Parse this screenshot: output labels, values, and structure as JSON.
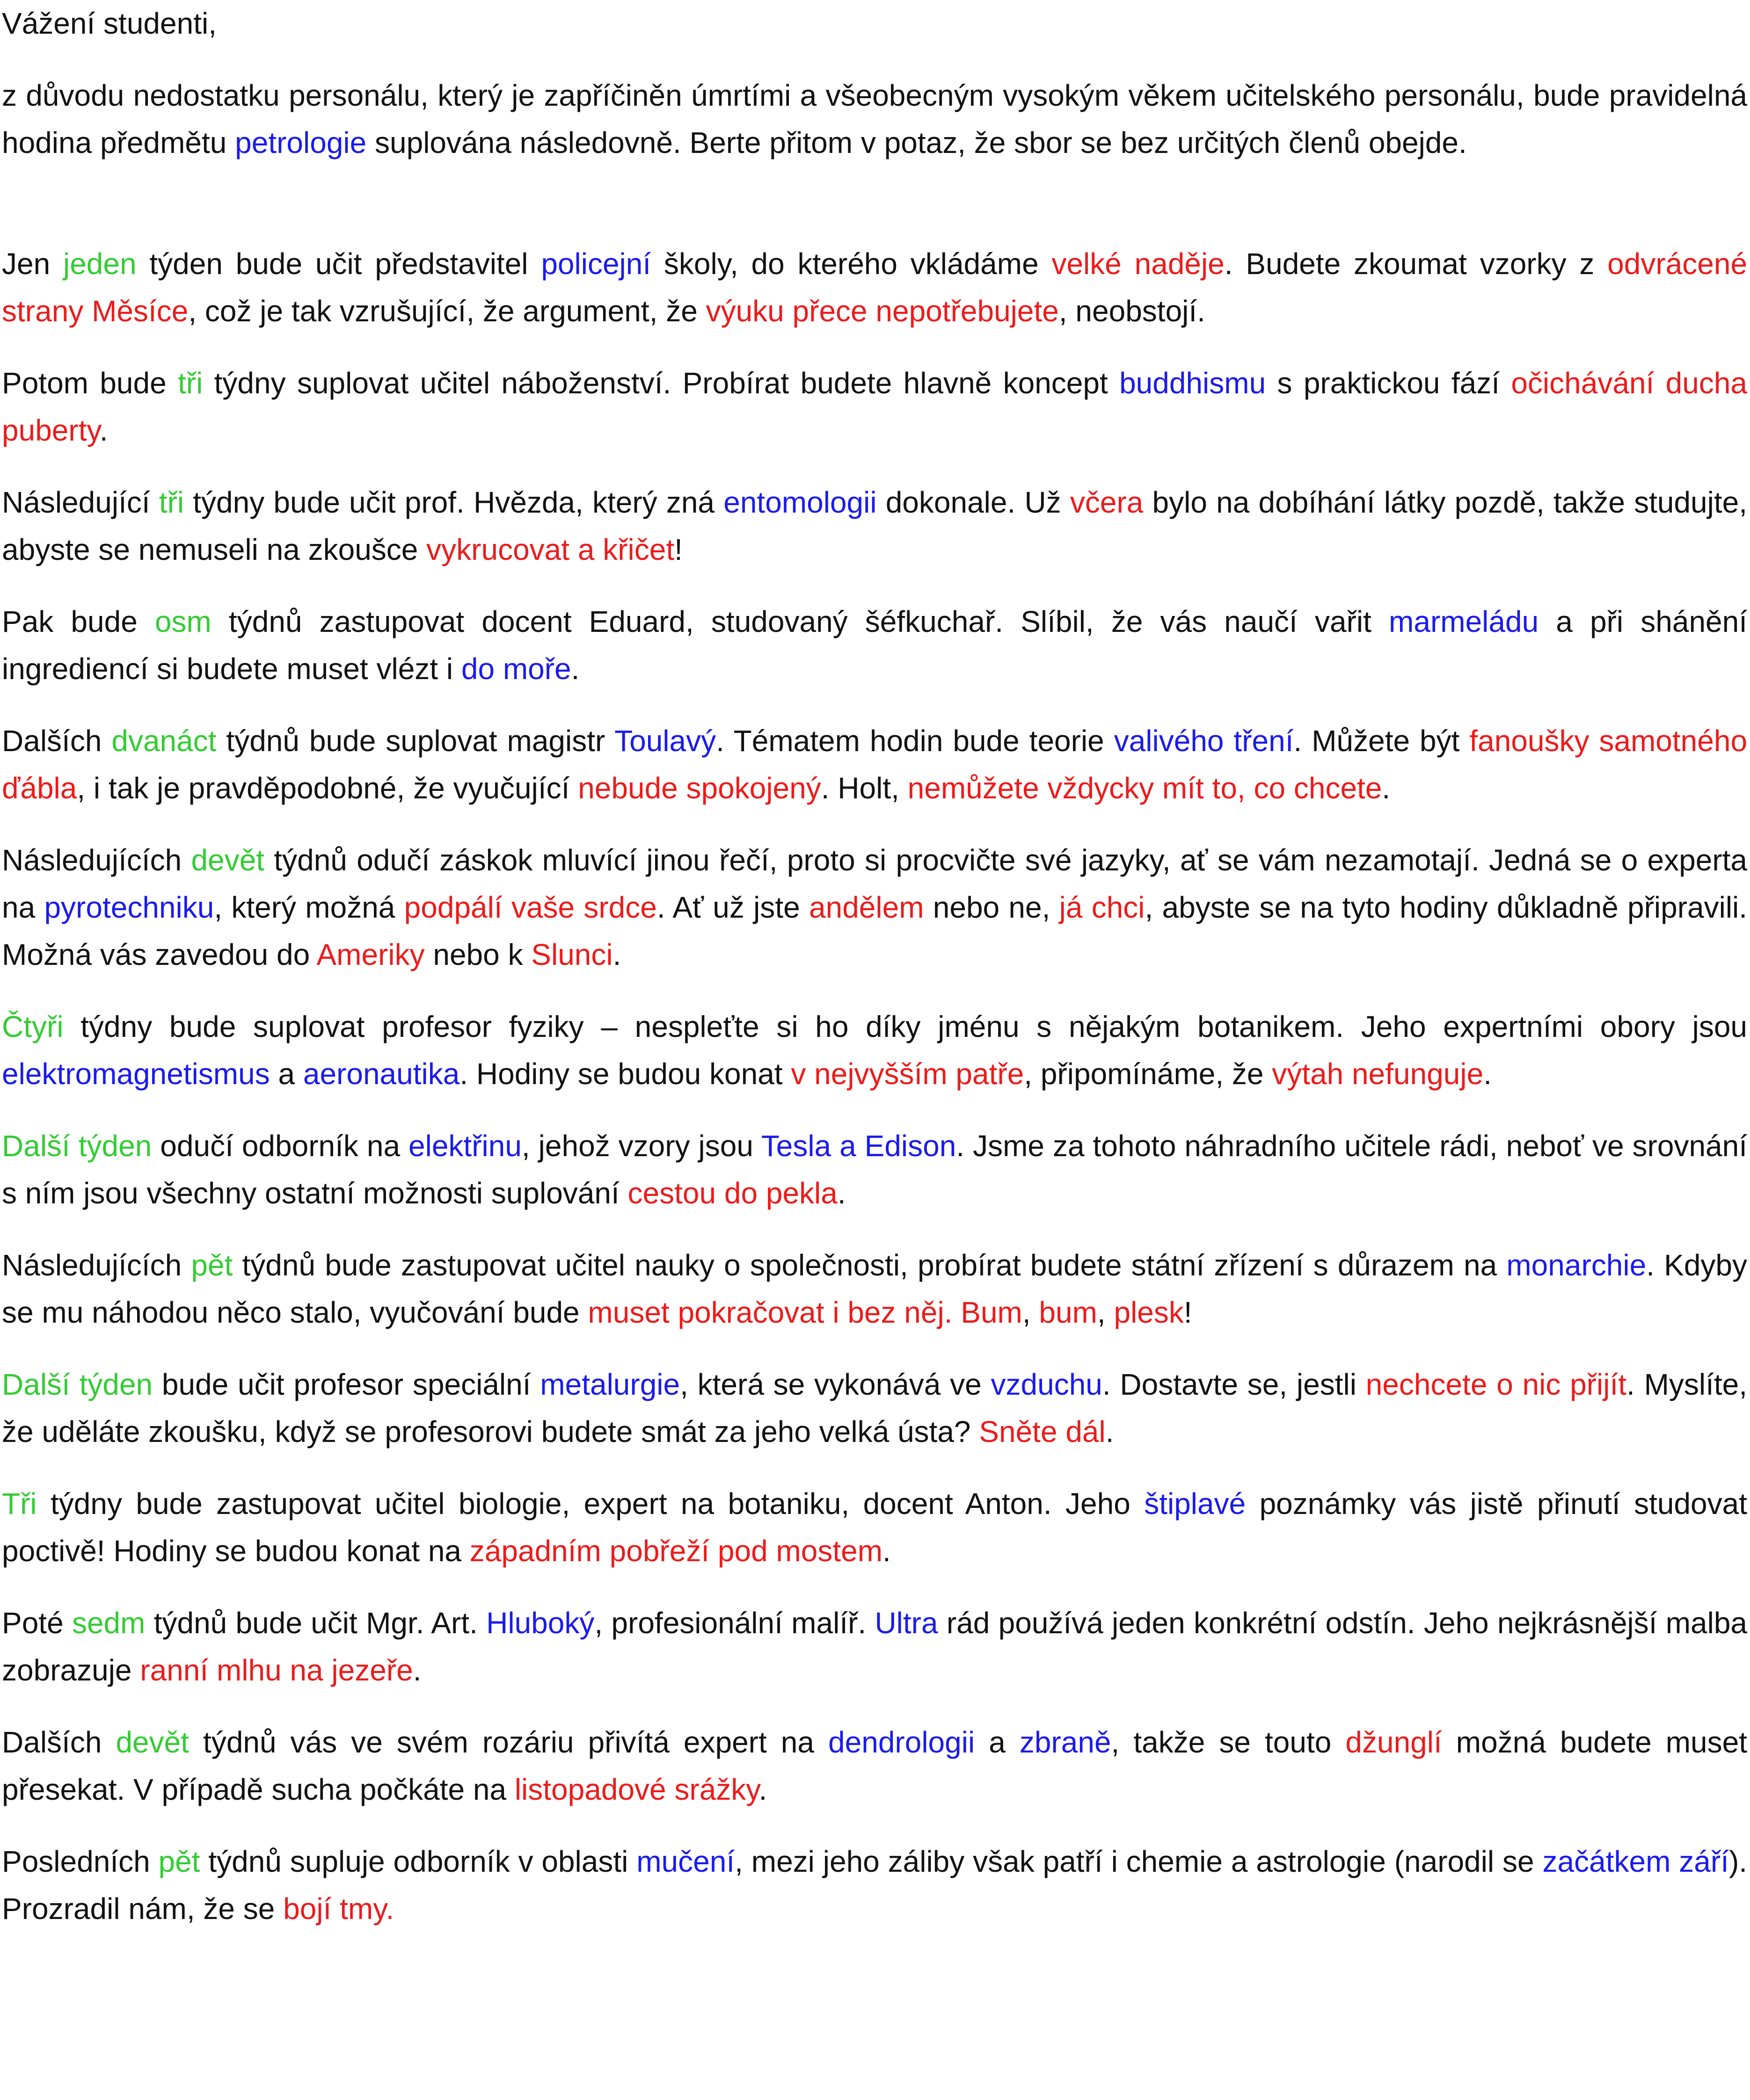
{
  "paragraphs": [
    {
      "segments": [
        {
          "text": "Vážení studenti,"
        }
      ]
    },
    {
      "segments": [
        {
          "text": "z důvodu nedostatku personálu, který je zapříčiněn úmrtími a všeobecným vysokým věkem učitelského personálu, bude pravidelná hodina předmětu "
        },
        {
          "text": "petrologie",
          "color": "#1a1aee"
        },
        {
          "text": " suplována následovně. Berte přitom v potaz, že sbor se bez určitých členů obejde."
        }
      ]
    },
    {
      "segments": [
        {
          "text": "Jen "
        },
        {
          "text": "jeden",
          "color": "#33cc33"
        },
        {
          "text": " týden bude učit představitel "
        },
        {
          "text": "policejní",
          "color": "#1a1aee"
        },
        {
          "text": " školy, do kterého vkládáme "
        },
        {
          "text": "velké naděje",
          "color": "#ee1a1a"
        },
        {
          "text": ". Budete zkoumat vzorky z "
        },
        {
          "text": "odvrácené strany Měsíce",
          "color": "#ee1a1a"
        },
        {
          "text": ", což je tak vzrušující, že argument, že "
        },
        {
          "text": "výuku přece nepotřebujete",
          "color": "#ee1a1a"
        },
        {
          "text": ", neobstojí."
        }
      ]
    },
    {
      "segments": [
        {
          "text": "Potom bude "
        },
        {
          "text": "tři",
          "color": "#33cc33"
        },
        {
          "text": " týdny suplovat učitel náboženství. Probírat budete hlavně koncept "
        },
        {
          "text": "buddhismu",
          "color": "#1a1aee"
        },
        {
          "text": " s praktickou fází "
        },
        {
          "text": "očichávání ducha puberty",
          "color": "#ee1a1a"
        },
        {
          "text": "."
        }
      ]
    },
    {
      "segments": [
        {
          "text": "Následující "
        },
        {
          "text": "tři",
          "color": "#33cc33"
        },
        {
          "text": " týdny bude učit prof. Hvězda, který zná "
        },
        {
          "text": "entomologii",
          "color": "#1a1aee"
        },
        {
          "text": " dokonale. Už "
        },
        {
          "text": "včera",
          "color": "#ee1a1a"
        },
        {
          "text": " bylo na dobíhání látky pozdě, takže studujte, abyste se nemuseli na zkoušce "
        },
        {
          "text": "vykrucovat a křičet",
          "color": "#ee1a1a"
        },
        {
          "text": "!"
        }
      ]
    },
    {
      "segments": [
        {
          "text": "Pak bude "
        },
        {
          "text": "osm",
          "color": "#33cc33"
        },
        {
          "text": " týdnů zastupovat docent Eduard, studovaný šéfkuchař. Slíbil, že vás naučí vařit "
        },
        {
          "text": "marmeládu",
          "color": "#1a1aee"
        },
        {
          "text": " a při shánění ingrediencí si budete muset vlézt i "
        },
        {
          "text": "do moře",
          "color": "#1a1aee"
        },
        {
          "text": "."
        }
      ]
    },
    {
      "segments": [
        {
          "text": "Dalších "
        },
        {
          "text": "dvanáct",
          "color": "#33cc33"
        },
        {
          "text": " týdnů bude suplovat magistr "
        },
        {
          "text": "Toulavý",
          "color": "#1a1aee"
        },
        {
          "text": ". Tématem hodin bude teorie "
        },
        {
          "text": "valivého tření",
          "color": "#1a1aee"
        },
        {
          "text": ". Můžete být "
        },
        {
          "text": "fanoušky samotného ďábla",
          "color": "#ee1a1a"
        },
        {
          "text": ", i tak je pravděpodobné, že vyučující "
        },
        {
          "text": "nebude spokojený",
          "color": "#ee1a1a"
        },
        {
          "text": ". Holt, "
        },
        {
          "text": "nemůžete vždycky mít to, co chcete",
          "color": "#ee1a1a"
        },
        {
          "text": "."
        }
      ]
    },
    {
      "segments": [
        {
          "text": "Následujících "
        },
        {
          "text": "devět",
          "color": "#33cc33"
        },
        {
          "text": " týdnů odučí záskok mluvící jinou řečí, proto si procvičte své jazyky, ať se vám nezamotají. Jedná se o experta na "
        },
        {
          "text": "pyrotechniku",
          "color": "#1a1aee"
        },
        {
          "text": ", který možná "
        },
        {
          "text": "podpálí vaše srdce",
          "color": "#ee1a1a"
        },
        {
          "text": ". Ať už jste "
        },
        {
          "text": "andělem",
          "color": "#ee1a1a"
        },
        {
          "text": " nebo ne, "
        },
        {
          "text": "já chci",
          "color": "#ee1a1a"
        },
        {
          "text": ", abyste se na tyto hodiny důkladně připravili. Možná vás zavedou do "
        },
        {
          "text": "Ameriky",
          "color": "#ee1a1a"
        },
        {
          "text": " nebo k "
        },
        {
          "text": "Slunci",
          "color": "#ee1a1a"
        },
        {
          "text": "."
        }
      ]
    },
    {
      "segments": [
        {
          "text": "Čtyři",
          "color": "#33cc33"
        },
        {
          "text": " týdny bude suplovat profesor fyziky – nespleťte si ho díky jménu s nějakým botanikem. Jeho expertními obory jsou "
        },
        {
          "text": "elektromagnetismus",
          "color": "#1a1aee"
        },
        {
          "text": " a "
        },
        {
          "text": "aeronautika",
          "color": "#1a1aee"
        },
        {
          "text": ". Hodiny se budou konat "
        },
        {
          "text": "v nejvyšším patře",
          "color": "#ee1a1a"
        },
        {
          "text": ", připomínáme, že "
        },
        {
          "text": "výtah nefunguje",
          "color": "#ee1a1a"
        },
        {
          "text": "."
        }
      ]
    },
    {
      "segments": [
        {
          "text": "Další týden",
          "color": "#33cc33"
        },
        {
          "text": " odučí odborník na "
        },
        {
          "text": "elektřinu",
          "color": "#1a1aee"
        },
        {
          "text": ", jehož vzory jsou "
        },
        {
          "text": "Tesla a Edison",
          "color": "#1a1aee"
        },
        {
          "text": ". Jsme za tohoto náhradního učitele rádi, neboť ve srovnání s ním jsou všechny ostatní možnosti suplování "
        },
        {
          "text": "cestou do pekla",
          "color": "#ee1a1a"
        },
        {
          "text": "."
        }
      ]
    },
    {
      "segments": [
        {
          "text": "Následujících "
        },
        {
          "text": "pět",
          "color": "#33cc33"
        },
        {
          "text": " týdnů bude zastupovat učitel nauky o společnosti, probírat budete státní zřízení s důrazem na "
        },
        {
          "text": "monarchie",
          "color": "#1a1aee"
        },
        {
          "text": ". Kdyby se mu náhodou něco stalo, vyučování bude "
        },
        {
          "text": "muset pokračovat i bez něj. Bum",
          "color": "#ee1a1a"
        },
        {
          "text": ", "
        },
        {
          "text": "bum",
          "color": "#ee1a1a"
        },
        {
          "text": ", "
        },
        {
          "text": "plesk",
          "color": "#ee1a1a"
        },
        {
          "text": "!"
        }
      ]
    },
    {
      "segments": [
        {
          "text": "Další týden",
          "color": "#33cc33"
        },
        {
          "text": " bude učit profesor speciální "
        },
        {
          "text": "metalurgie",
          "color": "#1a1aee"
        },
        {
          "text": ", která se vykonává ve "
        },
        {
          "text": "vzduchu",
          "color": "#1a1aee"
        },
        {
          "text": ". Dostavte se, jestli "
        },
        {
          "text": "nechcete o nic přijít",
          "color": "#ee1a1a"
        },
        {
          "text": ". Myslíte, že uděláte zkoušku, když se profesorovi budete smát za jeho velká ústa? "
        },
        {
          "text": "Sněte dál",
          "color": "#ee1a1a"
        },
        {
          "text": "."
        }
      ]
    },
    {
      "segments": [
        {
          "text": "Tři",
          "color": "#33cc33"
        },
        {
          "text": " týdny bude zastupovat učitel biologie, expert na botaniku, docent Anton. Jeho "
        },
        {
          "text": "štiplavé",
          "color": "#1a1aee"
        },
        {
          "text": " poznámky vás jistě přinutí studovat poctivě! Hodiny se budou konat na "
        },
        {
          "text": "západním pobřeží pod mostem",
          "color": "#ee1a1a"
        },
        {
          "text": "."
        }
      ]
    },
    {
      "segments": [
        {
          "text": "Poté "
        },
        {
          "text": "sedm",
          "color": "#33cc33"
        },
        {
          "text": " týdnů bude učit Mgr. Art. "
        },
        {
          "text": "Hluboký",
          "color": "#1a1aee"
        },
        {
          "text": ", profesionální malíř. "
        },
        {
          "text": "Ultra",
          "color": "#1a1aee"
        },
        {
          "text": " rád používá jeden konkrétní odstín. Jeho nejkrásnější malba zobrazuje "
        },
        {
          "text": "ranní mlhu na jezeře",
          "color": "#ee1a1a"
        },
        {
          "text": "."
        }
      ]
    },
    {
      "segments": [
        {
          "text": "Dalších "
        },
        {
          "text": "devět",
          "color": "#33cc33"
        },
        {
          "text": " týdnů vás ve svém rozáriu přivítá expert na "
        },
        {
          "text": "dendrologii",
          "color": "#1a1aee"
        },
        {
          "text": " a "
        },
        {
          "text": "zbraně",
          "color": "#1a1aee"
        },
        {
          "text": ", takže se touto "
        },
        {
          "text": "džunglí",
          "color": "#ee1a1a"
        },
        {
          "text": " možná budete muset přesekat. V případě sucha počkáte na "
        },
        {
          "text": "listopadové srážky",
          "color": "#ee1a1a"
        },
        {
          "text": "."
        }
      ]
    },
    {
      "segments": [
        {
          "text": "Posledních "
        },
        {
          "text": "pět",
          "color": "#33cc33"
        },
        {
          "text": " týdnů supluje odborník v oblasti "
        },
        {
          "text": "mučení",
          "color": "#1a1aee"
        },
        {
          "text": ", mezi jeho záliby však patří i chemie a astrologie (narodil se "
        },
        {
          "text": "začátkem září",
          "color": "#1a1aee"
        },
        {
          "text": "). Prozradil nám, že se "
        },
        {
          "text": "bojí tmy.",
          "color": "#ee1a1a"
        }
      ]
    }
  ]
}
